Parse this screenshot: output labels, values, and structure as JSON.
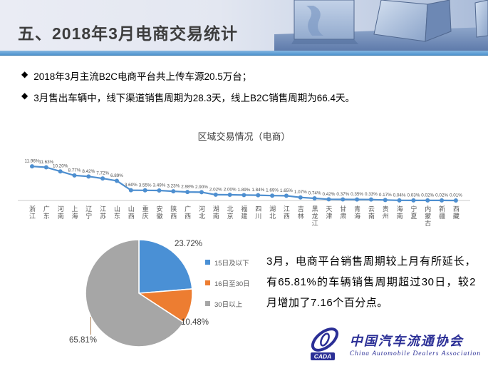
{
  "header": {
    "title": "五、2018年3月电商交易统计"
  },
  "bullet_marker": "◆",
  "bullets": [
    "2018年3月主流B2C电商平台共上传车源20.5万台；",
    "3月售出车辆中，线下渠道销售周期为28.3天，线上B2C销售周期为66.4天。"
  ],
  "chart_data": [
    {
      "type": "line",
      "title": "区域交易情况（电商）",
      "categories": [
        "浙江",
        "广东",
        "河南",
        "上海",
        "辽宁",
        "江苏",
        "山东",
        "山西",
        "重庆",
        "安徽",
        "陕西",
        "广西",
        "河北",
        "湖南",
        "北京",
        "福建",
        "四川",
        "湖北",
        "江西",
        "吉林",
        "黑龙江",
        "天津",
        "甘肃",
        "青海",
        "云南",
        "贵州",
        "海南",
        "宁夏",
        "内蒙古",
        "新疆",
        "西藏"
      ],
      "values": [
        11.96,
        11.63,
        10.2,
        8.77,
        8.42,
        7.72,
        6.89,
        3.6,
        3.55,
        3.49,
        3.23,
        2.98,
        2.9,
        2.02,
        2.0,
        1.89,
        1.84,
        1.69,
        1.65,
        1.07,
        0.74,
        0.42,
        0.37,
        0.35,
        0.33,
        0.17,
        0.04,
        0.03,
        0.02,
        0.02,
        0.01
      ],
      "label_format": "percent_2dp",
      "ylim": [
        0,
        13
      ],
      "grid": false,
      "line_color": "#4E8FD0",
      "axis_color": "#c9c9c9",
      "label_color": "#4d4d4d"
    },
    {
      "type": "pie",
      "legend_position": "right",
      "slices": [
        {
          "label": "15日及以下",
          "value": 23.72,
          "display": "23.72%",
          "color": "#4A90D5"
        },
        {
          "label": "16日至30日",
          "value": 10.48,
          "display": "10.48%",
          "color": "#ED7D31"
        },
        {
          "label": "30日以上",
          "value": 65.81,
          "display": "65.81%",
          "color": "#A6A6A6"
        }
      ]
    }
  ],
  "note": {
    "text": "3月，电商平台销售周期较上月有所延长，有65.81%的车辆销售周期超过30日，较2月增加了7.16个百分点。"
  },
  "logo": {
    "abbr": "CADA",
    "name_cn": "中国汽车流通协会",
    "name_en": "China Automobile Dealers Association"
  }
}
